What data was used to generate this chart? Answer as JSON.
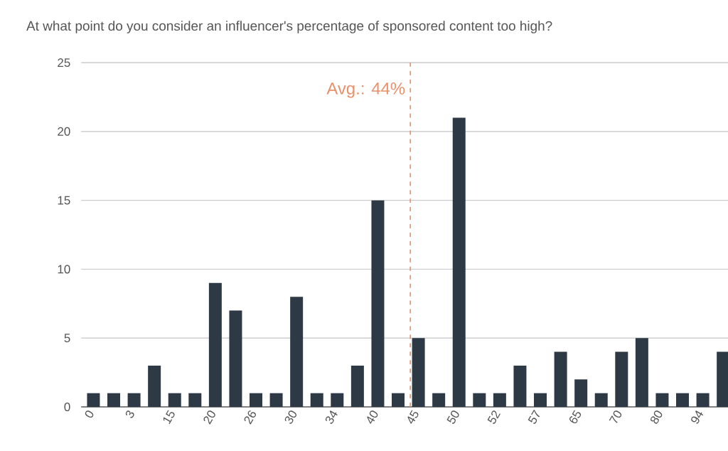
{
  "chart_data": {
    "type": "bar",
    "title": "At what point do you consider an influencer's percentage of sponsored content too high?",
    "categories": [
      "0",
      null,
      "3",
      null,
      "15",
      null,
      "20",
      null,
      "26",
      null,
      "30",
      null,
      "34",
      null,
      "40",
      null,
      "45",
      null,
      "50",
      null,
      "52",
      null,
      "57",
      null,
      "65",
      null,
      "70",
      null,
      "80",
      null,
      "94",
      null
    ],
    "values": [
      1,
      1,
      1,
      3,
      1,
      1,
      9,
      7,
      1,
      1,
      8,
      1,
      1,
      3,
      15,
      1,
      5,
      1,
      21,
      1,
      1,
      3,
      1,
      4,
      2,
      1,
      4,
      5,
      1,
      1,
      1,
      4
    ],
    "color": "#2d3945",
    "ylim": [
      0,
      25
    ],
    "yticks": [
      0,
      5,
      10,
      15,
      20,
      25
    ],
    "grid": "y",
    "annotations": [
      "Avg.: 44%"
    ]
  }
}
